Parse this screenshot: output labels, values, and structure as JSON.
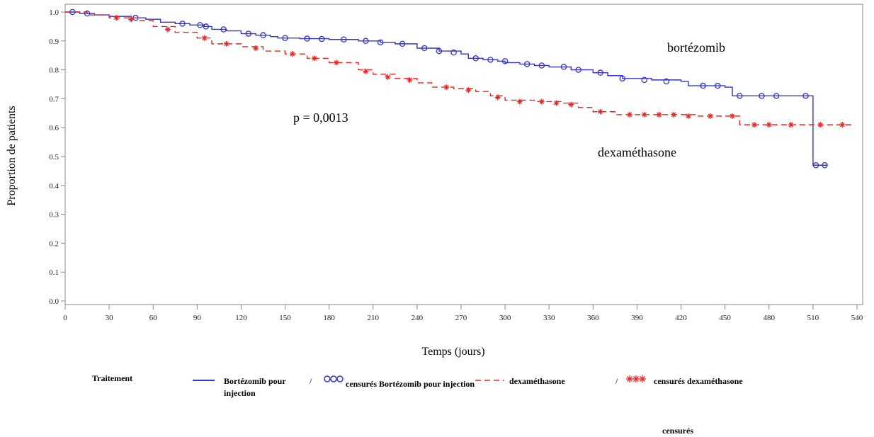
{
  "chart_data": {
    "type": "line",
    "subtype": "kaplan-meier step curves",
    "xlabel": "Temps (jours)",
    "ylabel": "Proportion de patients",
    "xlim": [
      0,
      540
    ],
    "ylim": [
      0,
      1.0
    ],
    "x_ticks": [
      0,
      30,
      60,
      90,
      120,
      150,
      180,
      210,
      240,
      270,
      300,
      330,
      360,
      390,
      420,
      450,
      480,
      510,
      540
    ],
    "y_ticks": [
      "0.0",
      "0.1",
      "0.2",
      "0.3",
      "0.4",
      "0.5",
      "0.6",
      "0.7",
      "0.8",
      "0.9",
      "1.0"
    ],
    "grid": false,
    "annotations": {
      "p_value": "p = 0,0013",
      "label_bortezomib": "bortézomib",
      "label_dexamethasone": "dexaméthasone"
    },
    "series": [
      {
        "name": "Bortézomib pour injection",
        "color": "#3333cc",
        "style": "solid",
        "marker": "circle",
        "x": [
          0,
          10,
          20,
          30,
          45,
          55,
          65,
          75,
          85,
          95,
          100,
          110,
          120,
          130,
          140,
          145,
          160,
          180,
          200,
          215,
          225,
          240,
          255,
          270,
          275,
          285,
          295,
          300,
          310,
          320,
          330,
          345,
          360,
          370,
          380,
          400,
          420,
          425,
          450,
          455,
          470,
          490,
          500,
          505,
          510,
          520
        ],
        "y": [
          1.0,
          0.995,
          0.99,
          0.985,
          0.98,
          0.975,
          0.965,
          0.96,
          0.955,
          0.95,
          0.94,
          0.935,
          0.925,
          0.92,
          0.915,
          0.91,
          0.908,
          0.905,
          0.9,
          0.895,
          0.89,
          0.875,
          0.865,
          0.855,
          0.84,
          0.835,
          0.83,
          0.825,
          0.82,
          0.815,
          0.81,
          0.8,
          0.79,
          0.78,
          0.77,
          0.765,
          0.76,
          0.745,
          0.74,
          0.71,
          0.71,
          0.71,
          0.71,
          0.71,
          0.47,
          0.47
        ],
        "censored_x": [
          5,
          15,
          48,
          80,
          92,
          96,
          108,
          125,
          135,
          150,
          165,
          175,
          190,
          205,
          215,
          230,
          245,
          255,
          265,
          280,
          290,
          300,
          315,
          325,
          340,
          350,
          365,
          380,
          395,
          410,
          435,
          445,
          460,
          475,
          485,
          505,
          512,
          518
        ],
        "censored_y": [
          1.0,
          0.995,
          0.98,
          0.96,
          0.955,
          0.95,
          0.94,
          0.925,
          0.92,
          0.91,
          0.908,
          0.907,
          0.905,
          0.9,
          0.895,
          0.89,
          0.875,
          0.865,
          0.86,
          0.84,
          0.835,
          0.83,
          0.82,
          0.815,
          0.81,
          0.8,
          0.79,
          0.77,
          0.765,
          0.76,
          0.745,
          0.745,
          0.71,
          0.71,
          0.71,
          0.71,
          0.47,
          0.47
        ]
      },
      {
        "name": "dexaméthasone",
        "color": "#ee2222",
        "style": "dashed",
        "marker": "asterisk",
        "x": [
          0,
          15,
          30,
          50,
          60,
          75,
          90,
          100,
          120,
          135,
          150,
          165,
          180,
          200,
          210,
          225,
          240,
          250,
          265,
          280,
          290,
          300,
          320,
          340,
          350,
          360,
          375,
          400,
          430,
          460,
          490,
          520,
          538
        ],
        "y": [
          1.0,
          0.99,
          0.98,
          0.97,
          0.95,
          0.93,
          0.91,
          0.89,
          0.88,
          0.865,
          0.855,
          0.84,
          0.825,
          0.8,
          0.785,
          0.77,
          0.755,
          0.74,
          0.735,
          0.725,
          0.71,
          0.695,
          0.69,
          0.685,
          0.67,
          0.655,
          0.645,
          0.645,
          0.64,
          0.61,
          0.61,
          0.61,
          0.61
        ],
        "censored_x": [
          35,
          45,
          70,
          95,
          110,
          130,
          155,
          170,
          185,
          205,
          220,
          235,
          260,
          275,
          295,
          310,
          325,
          335,
          345,
          365,
          385,
          395,
          405,
          415,
          425,
          440,
          455,
          470,
          480,
          495,
          515,
          530
        ],
        "censored_y": [
          0.98,
          0.975,
          0.94,
          0.91,
          0.89,
          0.875,
          0.855,
          0.84,
          0.825,
          0.795,
          0.775,
          0.765,
          0.74,
          0.73,
          0.705,
          0.69,
          0.69,
          0.685,
          0.68,
          0.655,
          0.645,
          0.645,
          0.645,
          0.645,
          0.64,
          0.64,
          0.64,
          0.61,
          0.61,
          0.61,
          0.61,
          0.61
        ]
      }
    ]
  },
  "legend": {
    "title": "Traitement",
    "item1_label": "Bortézomib pour injection",
    "item2_label": "censurés Bortézomib pour injection",
    "item3_label": "dexaméthasone",
    "item4_label": "censurés dexaméthasone",
    "item4_extra": "censurés",
    "slash": "/"
  }
}
